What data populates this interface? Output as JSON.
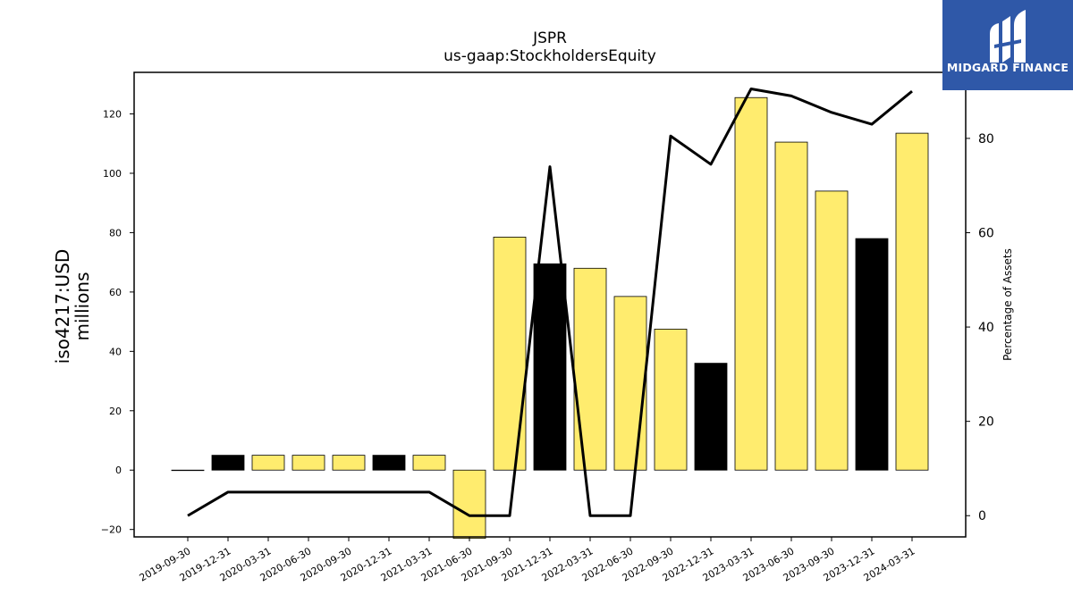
{
  "logo": {
    "text": "MIDGARD FINANCE"
  },
  "chart_data": {
    "type": "bar",
    "title": "JSPR",
    "subtitle": "us-gaap:StockholdersEquity",
    "ylabel": "iso4217:USD\nmillions",
    "y2label": "Percentage of Assets",
    "categories": [
      "2019-09-30",
      "2019-12-31",
      "2020-03-31",
      "2020-06-30",
      "2020-09-30",
      "2020-12-31",
      "2021-03-31",
      "2021-06-30",
      "2021-09-30",
      "2021-12-31",
      "2022-03-31",
      "2022-06-30",
      "2022-09-30",
      "2022-12-31",
      "2023-03-31",
      "2023-06-30",
      "2023-09-30",
      "2023-12-31",
      "2024-03-31"
    ],
    "series": [
      {
        "values": [
          0,
          5,
          5,
          5,
          5,
          5,
          5,
          -23,
          78.5,
          69.5,
          68,
          58.5,
          47.5,
          36,
          125.5,
          110.5,
          94,
          78,
          113.5
        ]
      },
      {
        "values": [
          0,
          5,
          5,
          5,
          5,
          5,
          5,
          0,
          0,
          74,
          0,
          0,
          80.5,
          74.5,
          90.5,
          89,
          85.5,
          83,
          90
        ]
      }
    ],
    "bar_colors": [
      "#000000",
      "#000000",
      "#ffec6e",
      "#ffec6e",
      "#ffec6e",
      "#000000",
      "#ffec6e",
      "#ffec6e",
      "#ffec6e",
      "#000000",
      "#ffec6e",
      "#ffec6e",
      "#ffec6e",
      "#000000",
      "#ffec6e",
      "#ffec6e",
      "#ffec6e",
      "#000000",
      "#ffec6e"
    ],
    "line_color": "#000000",
    "ylim": [
      -22.5,
      134
    ],
    "y2lim": [
      -4.5,
      94
    ],
    "yticks": [
      -20,
      0,
      20,
      40,
      60,
      80,
      100,
      120
    ],
    "y2ticks": [
      0,
      20,
      40,
      60,
      80
    ],
    "grid": false,
    "legend": "none"
  }
}
